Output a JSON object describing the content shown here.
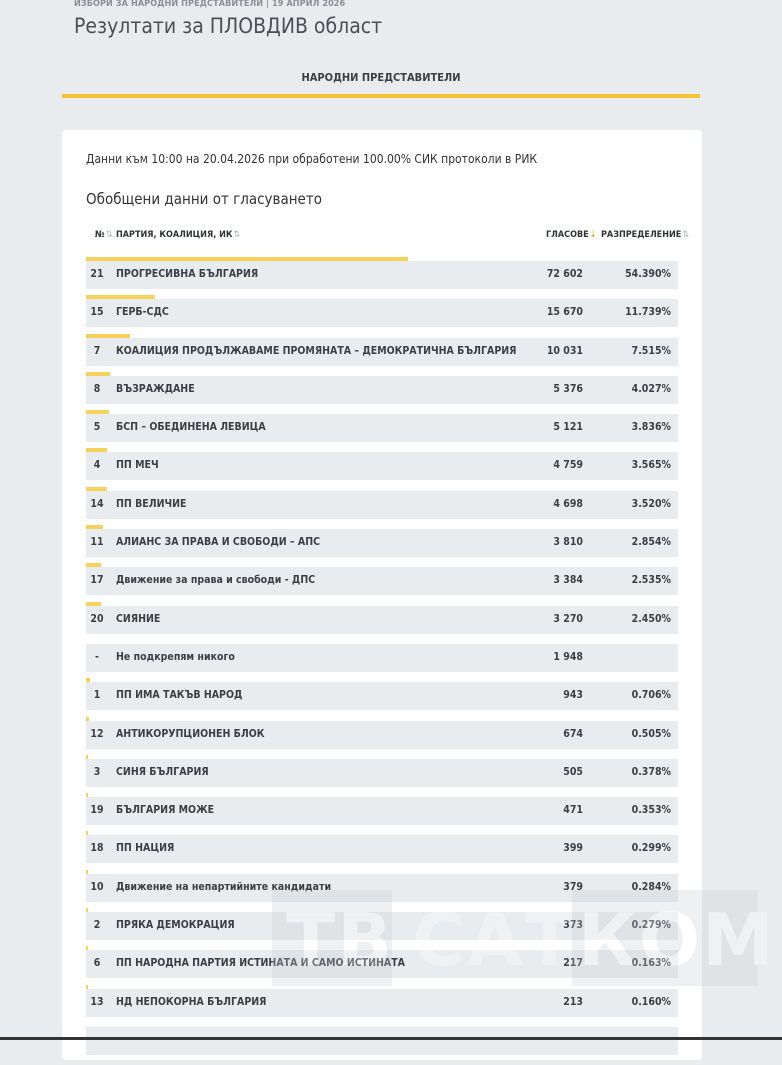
{
  "header": {
    "meta": "ИЗБОРИ ЗА НАРОДНИ ПРЕДСТАВИТЕЛИ | 19 АПРИЛ 2026",
    "title": "Резултати за ПЛОВДИВ област"
  },
  "tab": {
    "label": "НАРОДНИ ПРЕДСТАВИТЕЛИ"
  },
  "card": {
    "info": "Данни към 10:00 на 20.04.2026 при обработени 100.00% СИК протоколи в РИК",
    "section_title": "Обобщени данни от гласуването"
  },
  "table": {
    "headers": {
      "num": "№",
      "party": "ПАРТИЯ, КОАЛИЦИЯ, ИК",
      "votes": "ГЛАСОВЕ",
      "distribution": "РАЗПРЕДЕЛЕНИЕ"
    },
    "rows": [
      {
        "num": "21",
        "name": "ПРОГРЕСИВНА БЪЛГАРИЯ",
        "votes": "72 602",
        "pct": "54.390%",
        "share": 0.5439
      },
      {
        "num": "15",
        "name": "ГЕРБ-СДС",
        "votes": "15 670",
        "pct": "11.739%",
        "share": 0.11739
      },
      {
        "num": "7",
        "name": "КОАЛИЦИЯ ПРОДЪЛЖАВАМЕ ПРОМЯНАТА – ДЕМОКРАТИЧНА БЪЛГАРИЯ",
        "votes": "10 031",
        "pct": "7.515%",
        "share": 0.07515
      },
      {
        "num": "8",
        "name": "ВЪЗРАЖДАНЕ",
        "votes": "5 376",
        "pct": "4.027%",
        "share": 0.04027
      },
      {
        "num": "5",
        "name": "БСП – ОБЕДИНЕНА ЛЕВИЦА",
        "votes": "5 121",
        "pct": "3.836%",
        "share": 0.03836
      },
      {
        "num": "4",
        "name": "ПП МЕЧ",
        "votes": "4 759",
        "pct": "3.565%",
        "share": 0.03565
      },
      {
        "num": "14",
        "name": "ПП ВЕЛИЧИЕ",
        "votes": "4 698",
        "pct": "3.520%",
        "share": 0.0352
      },
      {
        "num": "11",
        "name": "АЛИАНС ЗА ПРАВА И СВОБОДИ – АПС",
        "votes": "3 810",
        "pct": "2.854%",
        "share": 0.02854
      },
      {
        "num": "17",
        "name": "Движение за права и свободи - ДПС",
        "votes": "3 384",
        "pct": "2.535%",
        "share": 0.02535
      },
      {
        "num": "20",
        "name": "СИЯНИЕ",
        "votes": "3 270",
        "pct": "2.450%",
        "share": 0.0245
      },
      {
        "num": "-",
        "name": "Не подкрепям никого",
        "votes": "1 948",
        "pct": "",
        "share": 0
      },
      {
        "num": "1",
        "name": "ПП ИМА ТАКЪВ НАРОД",
        "votes": "943",
        "pct": "0.706%",
        "share": 0.00706
      },
      {
        "num": "12",
        "name": "АНТИКОРУПЦИОНЕН БЛОК",
        "votes": "674",
        "pct": "0.505%",
        "share": 0.00505
      },
      {
        "num": "3",
        "name": "СИНЯ БЪЛГАРИЯ",
        "votes": "505",
        "pct": "0.378%",
        "share": 0.00378
      },
      {
        "num": "19",
        "name": "БЪЛГАРИЯ МОЖЕ",
        "votes": "471",
        "pct": "0.353%",
        "share": 0.00353
      },
      {
        "num": "18",
        "name": "ПП НАЦИЯ",
        "votes": "399",
        "pct": "0.299%",
        "share": 0.00299
      },
      {
        "num": "10",
        "name": "Движение на непартийните кандидати",
        "votes": "379",
        "pct": "0.284%",
        "share": 0.00284
      },
      {
        "num": "2",
        "name": "ПРЯКА ДЕМОКРАЦИЯ",
        "votes": "373",
        "pct": "0.279%",
        "share": 0.00279
      },
      {
        "num": "6",
        "name": "ПП НАРОДНА ПАРТИЯ ИСТИНАТА И САМО ИСТИНАТА",
        "votes": "217",
        "pct": "0.163%",
        "share": 0.00163
      },
      {
        "num": "13",
        "name": "НД НЕПОКОРНА БЪЛГАРИЯ",
        "votes": "213",
        "pct": "0.160%",
        "share": 0.0016
      },
      {
        "num": "",
        "name": "",
        "votes": "",
        "pct": "",
        "share": 0
      }
    ]
  },
  "watermark": {
    "left": "ТВ",
    "mid": "САТ",
    "right": "КОМ"
  },
  "colors": {
    "accent": "#f2c530",
    "bar": "#f7d258",
    "row_bg": "#e9ecef"
  }
}
